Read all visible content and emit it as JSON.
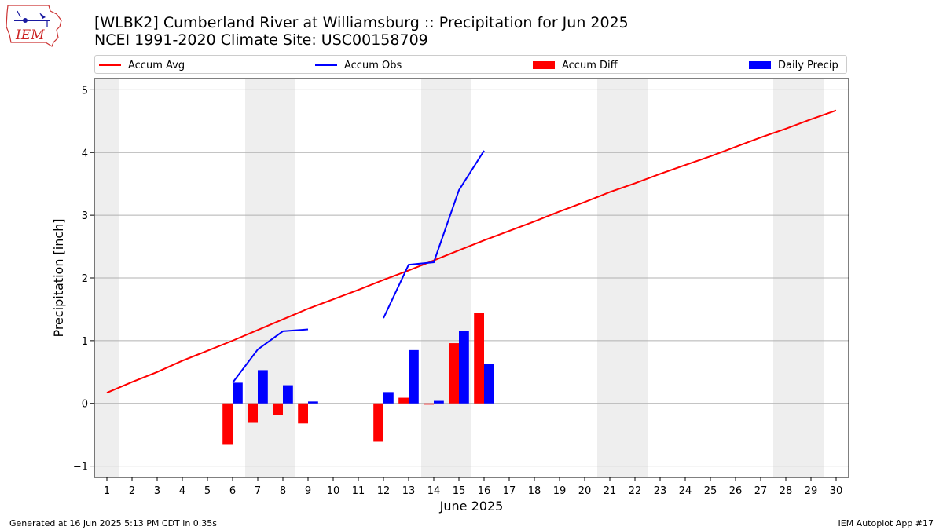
{
  "header": {
    "title_line1": "[WLBK2] Cumberland River at Williamsburg :: Precipitation for Jun 2025",
    "title_line2": "NCEI 1991-2020 Climate Site: USC00158709",
    "logo_text": "IEM"
  },
  "legend": {
    "placement": "top",
    "items": [
      {
        "label": "Accum Avg",
        "color": "#ff0000",
        "kind": "line"
      },
      {
        "label": "Accum Obs",
        "color": "#0000ff",
        "kind": "line"
      },
      {
        "label": "Accum Diff",
        "color": "#ff0000",
        "kind": "bar"
      },
      {
        "label": "Daily Precip",
        "color": "#0000ff",
        "kind": "bar"
      }
    ]
  },
  "chart_data": {
    "type": "bar",
    "xlabel": "June 2025",
    "ylabel": "Precipitation [inch]",
    "xlim": [
      0.5,
      30.5
    ],
    "ylim": [
      -1.18,
      5.18
    ],
    "x_ticks": [
      1,
      2,
      3,
      4,
      5,
      6,
      7,
      8,
      9,
      10,
      11,
      12,
      13,
      14,
      15,
      16,
      17,
      18,
      19,
      20,
      21,
      22,
      23,
      24,
      25,
      26,
      27,
      28,
      29,
      30
    ],
    "y_ticks": [
      -1,
      0,
      1,
      2,
      3,
      4,
      5
    ],
    "grid": "horizontal",
    "weekend_shading_days": [
      1,
      7,
      8,
      14,
      15,
      21,
      22,
      28,
      29
    ],
    "series": [
      {
        "name": "Accum Avg",
        "kind": "line",
        "color": "#ff0000",
        "x": [
          1,
          2,
          3,
          4,
          5,
          6,
          7,
          8,
          9,
          10,
          11,
          12,
          13,
          14,
          15,
          16,
          17,
          18,
          19,
          20,
          21,
          22,
          23,
          24,
          25,
          26,
          27,
          28,
          29,
          30
        ],
        "values": [
          0.17,
          0.34,
          0.5,
          0.68,
          0.84,
          1.0,
          1.17,
          1.34,
          1.51,
          1.66,
          1.81,
          1.97,
          2.12,
          2.28,
          2.44,
          2.6,
          2.75,
          2.9,
          3.06,
          3.21,
          3.37,
          3.51,
          3.66,
          3.8,
          3.94,
          4.09,
          4.24,
          4.38,
          4.53,
          4.67
        ]
      },
      {
        "name": "Accum Obs",
        "kind": "line",
        "color": "#0000ff",
        "x": [
          6,
          7,
          8,
          9,
          12,
          13,
          14,
          15,
          16
        ],
        "values": [
          0.33,
          0.86,
          1.15,
          1.18,
          1.36,
          2.21,
          2.25,
          3.4,
          4.03
        ],
        "segments": [
          [
            6,
            9
          ],
          [
            12,
            16
          ]
        ]
      },
      {
        "name": "Accum Diff",
        "kind": "bar",
        "color": "#ff0000",
        "x": [
          6,
          7,
          8,
          9,
          12,
          13,
          14,
          15,
          16
        ],
        "values": [
          -0.66,
          -0.31,
          -0.18,
          -0.32,
          -0.61,
          0.09,
          -0.02,
          0.96,
          1.44
        ]
      },
      {
        "name": "Daily Precip",
        "kind": "bar",
        "color": "#0000ff",
        "x": [
          6,
          7,
          8,
          9,
          12,
          13,
          14,
          15,
          16
        ],
        "values": [
          0.33,
          0.53,
          0.29,
          0.03,
          0.18,
          0.85,
          0.04,
          1.15,
          0.63
        ]
      }
    ]
  },
  "footer": {
    "left": "Generated at 16 Jun 2025 5:13 PM CDT in 0.35s",
    "right": "IEM Autoplot App #17"
  }
}
